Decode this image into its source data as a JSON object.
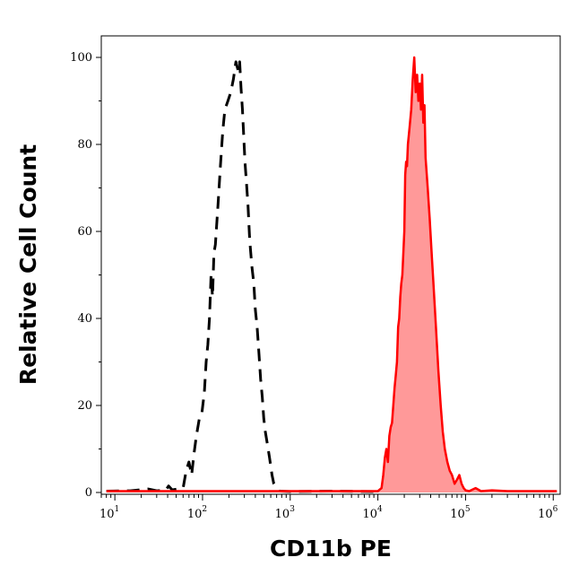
{
  "chart_data": {
    "type": "area",
    "title": "",
    "xlabel": "CD11b PE",
    "ylabel": "Relative Cell Count",
    "xscale": "log",
    "xlim": [
      7,
      1200000
    ],
    "ylim": [
      0,
      100
    ],
    "yticks": [
      0,
      20,
      40,
      60,
      80,
      100
    ],
    "xticks": [
      {
        "base": "10",
        "exp": "1",
        "value": 10
      },
      {
        "base": "10",
        "exp": "2",
        "value": 100
      },
      {
        "base": "10",
        "exp": "3",
        "value": 1000
      },
      {
        "base": "10",
        "exp": "4",
        "value": 10000
      },
      {
        "base": "10",
        "exp": "5",
        "value": 100000
      },
      {
        "base": "10",
        "exp": "6",
        "value": 1000000
      }
    ],
    "grid": false,
    "legend": "none",
    "series": [
      {
        "style": "dashed",
        "color": "#000000",
        "fill": "none",
        "points": [
          [
            8,
            0.3
          ],
          [
            15,
            0.4
          ],
          [
            24,
            0.8
          ],
          [
            30,
            0.4
          ],
          [
            38,
            0.5
          ],
          [
            41,
            1.5
          ],
          [
            45,
            0.6
          ],
          [
            60,
            1
          ],
          [
            65,
            5
          ],
          [
            70,
            7
          ],
          [
            75,
            4
          ],
          [
            80,
            9
          ],
          [
            85,
            13
          ],
          [
            92,
            17
          ],
          [
            98,
            18
          ],
          [
            105,
            23
          ],
          [
            110,
            30
          ],
          [
            115,
            34
          ],
          [
            120,
            40
          ],
          [
            125,
            50
          ],
          [
            130,
            45
          ],
          [
            135,
            55
          ],
          [
            140,
            57
          ],
          [
            150,
            66
          ],
          [
            160,
            75
          ],
          [
            170,
            83
          ],
          [
            180,
            88
          ],
          [
            195,
            90
          ],
          [
            210,
            92
          ],
          [
            225,
            95
          ],
          [
            240,
            99
          ],
          [
            255,
            97
          ],
          [
            265,
            99
          ],
          [
            275,
            93
          ],
          [
            285,
            88
          ],
          [
            295,
            82
          ],
          [
            305,
            76
          ],
          [
            315,
            72
          ],
          [
            330,
            66
          ],
          [
            345,
            58
          ],
          [
            365,
            52
          ],
          [
            385,
            48
          ],
          [
            400,
            42
          ],
          [
            420,
            38
          ],
          [
            440,
            32
          ],
          [
            460,
            26
          ],
          [
            480,
            22
          ],
          [
            500,
            17
          ],
          [
            520,
            14
          ],
          [
            550,
            11
          ],
          [
            580,
            8
          ],
          [
            620,
            4
          ],
          [
            650,
            2
          ],
          [
            700,
            1
          ],
          [
            750,
            0.3
          ],
          [
            1000,
            0.2
          ],
          [
            3000,
            0.3
          ],
          [
            10000,
            0.2
          ]
        ]
      },
      {
        "style": "solid",
        "color": "#ff0000",
        "fill": "#ff9999",
        "points": [
          [
            8,
            0.3
          ],
          [
            500,
            0.3
          ],
          [
            5000,
            0.3
          ],
          [
            10000,
            0.3
          ],
          [
            11000,
            1
          ],
          [
            11500,
            4
          ],
          [
            12000,
            8
          ],
          [
            12500,
            10
          ],
          [
            13000,
            7
          ],
          [
            13500,
            13
          ],
          [
            14000,
            15
          ],
          [
            14500,
            16
          ],
          [
            15000,
            20
          ],
          [
            15500,
            24
          ],
          [
            16000,
            27
          ],
          [
            16500,
            30
          ],
          [
            17000,
            38
          ],
          [
            17500,
            40
          ],
          [
            18000,
            45
          ],
          [
            18500,
            48
          ],
          [
            19000,
            50
          ],
          [
            19500,
            55
          ],
          [
            20000,
            60
          ],
          [
            20500,
            73
          ],
          [
            21000,
            76
          ],
          [
            21500,
            75
          ],
          [
            22000,
            80
          ],
          [
            23000,
            84
          ],
          [
            24000,
            88
          ],
          [
            25000,
            95
          ],
          [
            26000,
            100
          ],
          [
            27000,
            92
          ],
          [
            28000,
            96
          ],
          [
            29000,
            90
          ],
          [
            30000,
            94
          ],
          [
            31000,
            88
          ],
          [
            32000,
            96
          ],
          [
            33000,
            85
          ],
          [
            34000,
            89
          ],
          [
            35000,
            77
          ],
          [
            37000,
            70
          ],
          [
            39000,
            63
          ],
          [
            41000,
            55
          ],
          [
            43000,
            48
          ],
          [
            46000,
            38
          ],
          [
            49000,
            28
          ],
          [
            52000,
            20
          ],
          [
            55000,
            14
          ],
          [
            58000,
            10
          ],
          [
            62000,
            7
          ],
          [
            66000,
            5
          ],
          [
            70000,
            4
          ],
          [
            75000,
            2
          ],
          [
            80000,
            3
          ],
          [
            85000,
            4
          ],
          [
            90000,
            2
          ],
          [
            95000,
            1
          ],
          [
            100000,
            0.5
          ],
          [
            110000,
            0.3
          ],
          [
            130000,
            1
          ],
          [
            150000,
            0.3
          ],
          [
            200000,
            0.5
          ],
          [
            300000,
            0.3
          ],
          [
            1100000,
            0.3
          ]
        ]
      }
    ]
  }
}
